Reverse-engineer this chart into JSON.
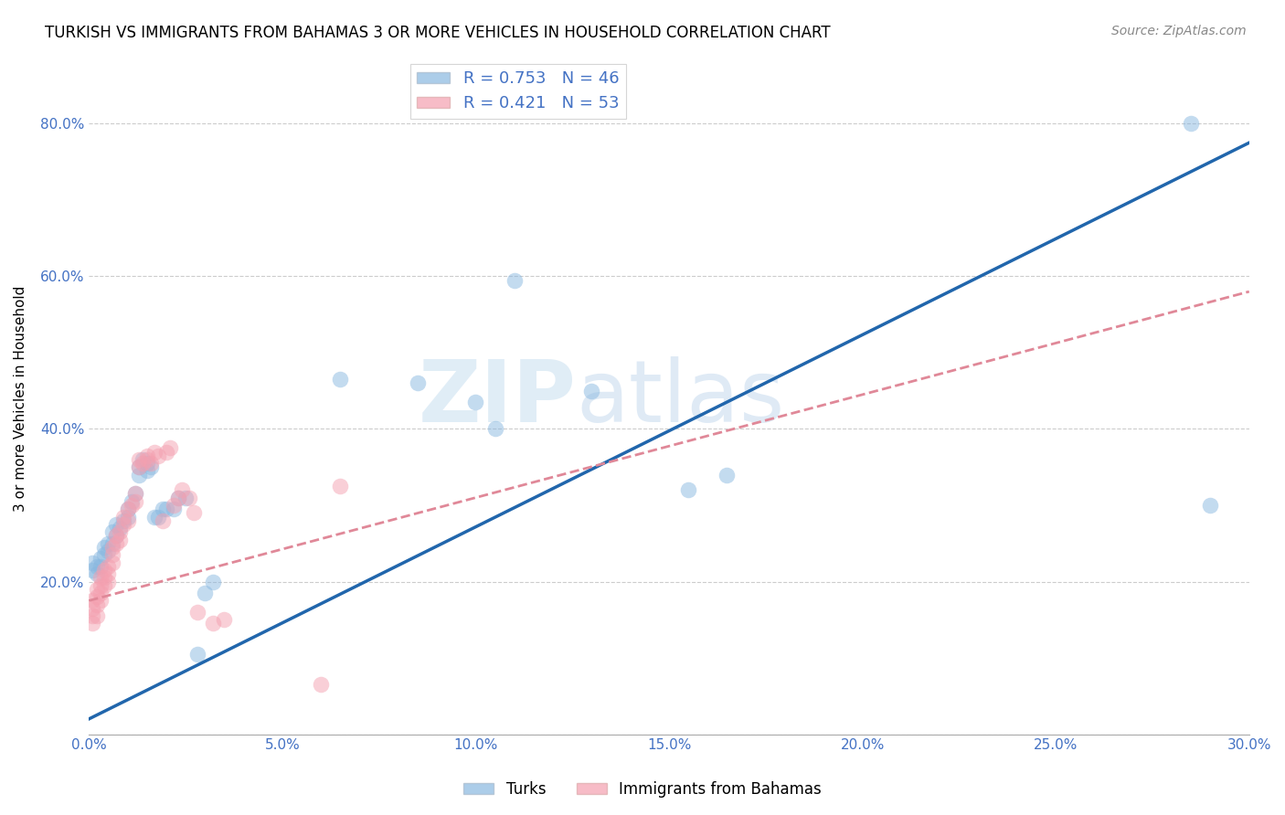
{
  "title": "TURKISH VS IMMIGRANTS FROM BAHAMAS 3 OR MORE VEHICLES IN HOUSEHOLD CORRELATION CHART",
  "source": "Source: ZipAtlas.com",
  "ylabel": "3 or more Vehicles in Household",
  "xlim": [
    0.0,
    0.3
  ],
  "ylim": [
    0.0,
    0.88
  ],
  "xticks": [
    0.0,
    0.05,
    0.1,
    0.15,
    0.2,
    0.25,
    0.3
  ],
  "xticklabels": [
    "0.0%",
    "5.0%",
    "10.0%",
    "15.0%",
    "20.0%",
    "25.0%",
    "30.0%"
  ],
  "yticks": [
    0.0,
    0.2,
    0.4,
    0.6,
    0.8
  ],
  "yticklabels": [
    "",
    "20.0%",
    "40.0%",
    "60.0%",
    "80.0%"
  ],
  "turks_color": "#89b8e0",
  "bahamas_color": "#f4a0b0",
  "turks_line_color": "#2166ac",
  "bahamas_line_color": "#e08898",
  "turks_R": 0.753,
  "turks_N": 46,
  "bahamas_R": 0.421,
  "bahamas_N": 53,
  "watermark_zip": "ZIP",
  "watermark_atlas": "atlas",
  "turks_line_x0": 0.0,
  "turks_line_y0": 0.02,
  "turks_line_x1": 0.3,
  "turks_line_y1": 0.775,
  "bahamas_line_x0": 0.0,
  "bahamas_line_y0": 0.175,
  "bahamas_line_x1": 0.3,
  "bahamas_line_y1": 0.58,
  "turks_x": [
    0.001,
    0.001,
    0.002,
    0.002,
    0.003,
    0.003,
    0.004,
    0.004,
    0.005,
    0.005,
    0.006,
    0.006,
    0.007,
    0.007,
    0.008,
    0.009,
    0.01,
    0.01,
    0.011,
    0.012,
    0.013,
    0.013,
    0.014,
    0.015,
    0.015,
    0.016,
    0.017,
    0.018,
    0.019,
    0.02,
    0.022,
    0.023,
    0.025,
    0.028,
    0.03,
    0.032,
    0.065,
    0.085,
    0.1,
    0.105,
    0.11,
    0.13,
    0.155,
    0.165,
    0.285,
    0.29
  ],
  "turks_y": [
    0.215,
    0.225,
    0.21,
    0.22,
    0.22,
    0.23,
    0.235,
    0.245,
    0.24,
    0.25,
    0.25,
    0.265,
    0.26,
    0.275,
    0.27,
    0.28,
    0.285,
    0.295,
    0.305,
    0.315,
    0.34,
    0.35,
    0.36,
    0.345,
    0.355,
    0.35,
    0.285,
    0.285,
    0.295,
    0.295,
    0.295,
    0.31,
    0.31,
    0.105,
    0.185,
    0.2,
    0.465,
    0.46,
    0.435,
    0.4,
    0.595,
    0.45,
    0.32,
    0.34,
    0.8,
    0.3
  ],
  "bahamas_x": [
    0.001,
    0.001,
    0.001,
    0.001,
    0.002,
    0.002,
    0.002,
    0.002,
    0.003,
    0.003,
    0.003,
    0.003,
    0.004,
    0.004,
    0.004,
    0.005,
    0.005,
    0.005,
    0.006,
    0.006,
    0.006,
    0.007,
    0.007,
    0.008,
    0.008,
    0.009,
    0.009,
    0.01,
    0.01,
    0.011,
    0.012,
    0.012,
    0.013,
    0.013,
    0.014,
    0.015,
    0.015,
    0.016,
    0.017,
    0.018,
    0.019,
    0.02,
    0.021,
    0.022,
    0.023,
    0.024,
    0.026,
    0.027,
    0.028,
    0.032,
    0.035,
    0.06,
    0.065
  ],
  "bahamas_y": [
    0.145,
    0.155,
    0.165,
    0.175,
    0.155,
    0.17,
    0.18,
    0.19,
    0.175,
    0.185,
    0.195,
    0.205,
    0.195,
    0.205,
    0.215,
    0.2,
    0.21,
    0.22,
    0.225,
    0.235,
    0.245,
    0.25,
    0.26,
    0.255,
    0.265,
    0.275,
    0.285,
    0.28,
    0.295,
    0.3,
    0.305,
    0.315,
    0.35,
    0.36,
    0.355,
    0.36,
    0.365,
    0.355,
    0.37,
    0.365,
    0.28,
    0.37,
    0.375,
    0.3,
    0.31,
    0.32,
    0.31,
    0.29,
    0.16,
    0.145,
    0.15,
    0.065,
    0.325
  ]
}
